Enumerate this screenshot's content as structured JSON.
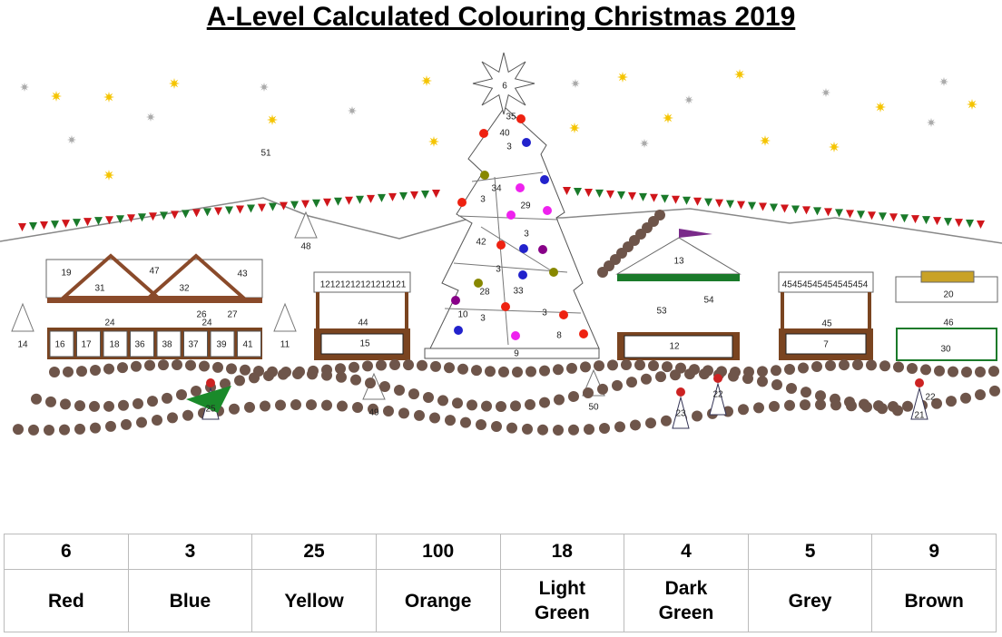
{
  "header": {
    "title": "A-Level Calculated Colouring Christmas 2019"
  },
  "scene": {
    "labels": [
      "6",
      "35",
      "40",
      "3",
      "51",
      "34",
      "29",
      "3",
      "3",
      "42",
      "3",
      "28",
      "33",
      "10",
      "3",
      "3",
      "8",
      "9",
      "48",
      "19",
      "47",
      "43",
      "31",
      "32",
      "12121212121212121",
      "24",
      "26",
      "27",
      "24",
      "14",
      "16",
      "17",
      "18",
      "36",
      "38",
      "37",
      "39",
      "41",
      "11",
      "44",
      "15",
      "13",
      "53",
      "54",
      "12",
      "45454545454545454",
      "45",
      "7",
      "20",
      "46",
      "30",
      "25",
      "49",
      "50",
      "22",
      "23",
      "21",
      "22"
    ]
  },
  "key": {
    "numbers": [
      "6",
      "3",
      "25",
      "100",
      "18",
      "4",
      "5",
      "9"
    ],
    "colours": [
      "Red",
      "Blue",
      "Yellow",
      "Orange",
      "Light Green",
      "Dark Green",
      "Grey",
      "Brown"
    ]
  }
}
